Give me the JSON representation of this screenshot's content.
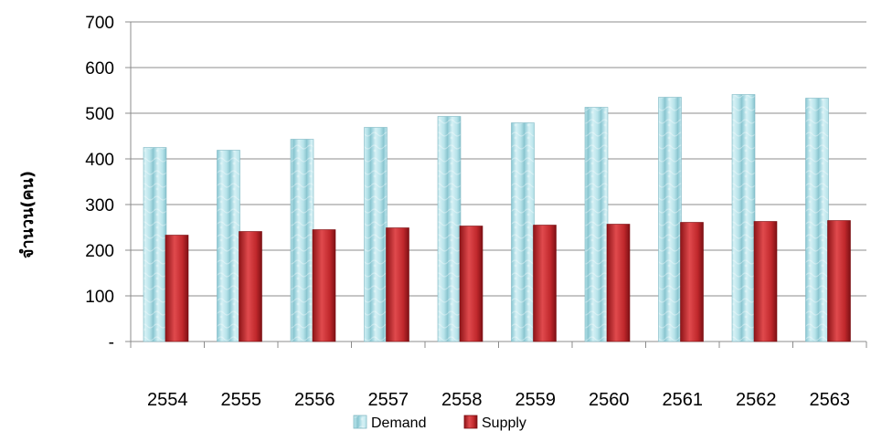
{
  "chart_data": {
    "type": "bar",
    "title": "",
    "ylabel": "จำนวน(คน)",
    "xlabel": "",
    "categories": [
      "2554",
      "2555",
      "2556",
      "2557",
      "2558",
      "2559",
      "2560",
      "2561",
      "2562",
      "2563"
    ],
    "series": [
      {
        "name": "Demand",
        "color": "#a9dde6",
        "values": [
          425,
          419,
          443,
          469,
          493,
          479,
          513,
          535,
          541,
          533
        ]
      },
      {
        "name": "Supply",
        "color": "#c0282c",
        "values": [
          233,
          241,
          245,
          249,
          253,
          255,
          257,
          261,
          263,
          265
        ]
      }
    ],
    "ylim": [
      0,
      700
    ],
    "yticks": [
      {
        "value": 0,
        "label": "-"
      },
      {
        "value": 100,
        "label": "100"
      },
      {
        "value": 200,
        "label": "200"
      },
      {
        "value": 300,
        "label": "300"
      },
      {
        "value": 400,
        "label": "400"
      },
      {
        "value": 500,
        "label": "500"
      },
      {
        "value": 600,
        "label": "600"
      },
      {
        "value": 700,
        "label": "700"
      }
    ],
    "grid": true,
    "legend_position": "bottom"
  }
}
